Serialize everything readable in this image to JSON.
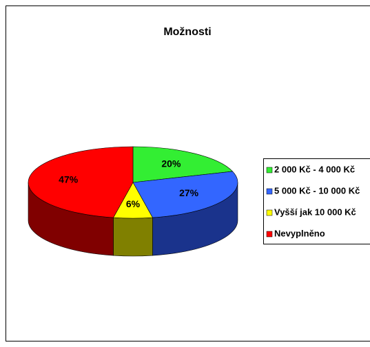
{
  "chart_data": {
    "type": "pie",
    "title": "Možnosti",
    "categories": [
      "2 000 Kč - 4 000 Kč",
      "5 000 Kč - 10 000 Kč",
      "Vyšší jak 10 000 Kč",
      "Nevyplněno"
    ],
    "values": [
      20,
      27,
      6,
      47
    ],
    "value_labels": [
      "20%",
      "27%",
      "6%",
      "47%"
    ],
    "colors": [
      "#33ee33",
      "#3366ff",
      "#ffff00",
      "#ff0000"
    ],
    "legend": "right"
  }
}
